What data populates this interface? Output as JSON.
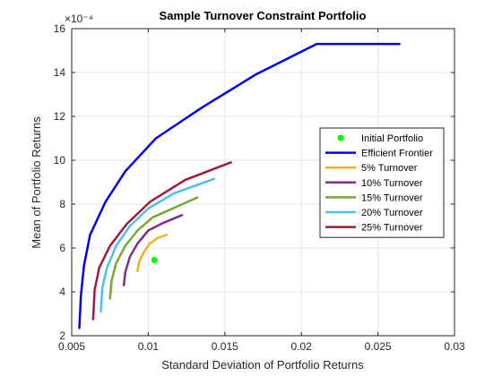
{
  "chart_data": {
    "type": "line",
    "title": "Sample Turnover Constraint Portfolio",
    "xlabel": "Standard Deviation of Portfolio Returns",
    "ylabel": "Mean of Portfolio Returns",
    "y_exponent_label": "×10⁻⁴",
    "xlim": [
      0.005,
      0.03
    ],
    "ylim": [
      2,
      16
    ],
    "xticks": [
      "0.005",
      "0.01",
      "0.015",
      "0.02",
      "0.025",
      "0.03"
    ],
    "yticks": [
      "2",
      "4",
      "6",
      "8",
      "10",
      "12",
      "14",
      "16"
    ],
    "grid": true,
    "legend_position": "right",
    "point": {
      "name": "Initial Portfolio",
      "x": 0.0104,
      "y": 5.45,
      "color": "#00ff00"
    },
    "series": [
      {
        "name": "Efficient Frontier",
        "color": "#0000ee",
        "x": [
          0.0055,
          0.0056,
          0.0058,
          0.0062,
          0.0072,
          0.0085,
          0.0105,
          0.0135,
          0.017,
          0.021,
          0.0264
        ],
        "y": [
          2.35,
          3.8,
          5.2,
          6.6,
          8.1,
          9.5,
          11.0,
          12.4,
          13.9,
          15.3,
          15.3
        ]
      },
      {
        "name": "5% Turnover",
        "color": "#f2b11c",
        "x": [
          0.0093,
          0.0094,
          0.0097,
          0.0101,
          0.0106,
          0.0112
        ],
        "y": [
          4.95,
          5.35,
          5.8,
          6.2,
          6.45,
          6.6
        ]
      },
      {
        "name": "10% Turnover",
        "color": "#7b2f8e",
        "x": [
          0.0084,
          0.0085,
          0.0088,
          0.0093,
          0.01,
          0.011,
          0.0122
        ],
        "y": [
          4.3,
          4.9,
          5.6,
          6.2,
          6.8,
          7.15,
          7.5
        ]
      },
      {
        "name": "15% Turnover",
        "color": "#76a832",
        "x": [
          0.0075,
          0.0076,
          0.0079,
          0.0085,
          0.0093,
          0.0103,
          0.0116,
          0.0132
        ],
        "y": [
          3.7,
          4.5,
          5.3,
          6.1,
          6.8,
          7.4,
          7.8,
          8.3
        ]
      },
      {
        "name": "20% Turnover",
        "color": "#4dbfec",
        "x": [
          0.0069,
          0.007,
          0.0073,
          0.0079,
          0.0088,
          0.01,
          0.0117,
          0.0143
        ],
        "y": [
          3.1,
          4.2,
          5.1,
          6.1,
          7.0,
          7.8,
          8.5,
          9.15
        ]
      },
      {
        "name": "25% Turnover",
        "color": "#a3193a",
        "x": [
          0.0064,
          0.0065,
          0.0068,
          0.0075,
          0.0086,
          0.0101,
          0.0124,
          0.0154
        ],
        "y": [
          2.75,
          4.1,
          5.1,
          6.1,
          7.1,
          8.1,
          9.1,
          9.9
        ]
      }
    ]
  }
}
